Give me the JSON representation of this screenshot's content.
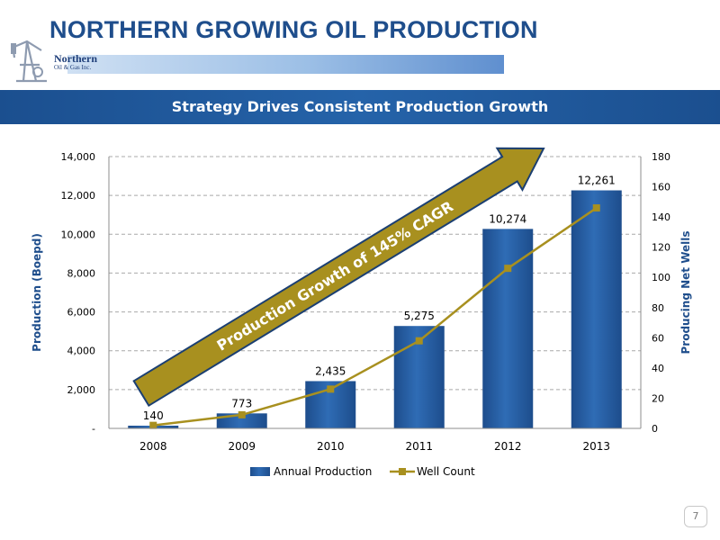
{
  "page": {
    "title": "NORTHERN GROWING OIL PRODUCTION",
    "subtitle": "Strategy Drives Consistent Production Growth",
    "page_number": "7"
  },
  "logo": {
    "line1": "Northern",
    "line2": "Oil & Gas Inc."
  },
  "colors": {
    "title": "#1f4e8c",
    "banner": "#1b4f8f",
    "bar": "#2563a9",
    "line": "#a8901f",
    "arrow": "#a8901f"
  },
  "chart_data": {
    "type": "bar",
    "categories": [
      "2008",
      "2009",
      "2010",
      "2011",
      "2012",
      "2013"
    ],
    "series": [
      {
        "name": "Annual Production",
        "type": "bar",
        "axis": "left",
        "values": [
          140,
          773,
          2435,
          5275,
          10274,
          12261
        ],
        "labels": [
          "140",
          "773",
          "2,435",
          "5,275",
          "10,274",
          "12,261"
        ]
      },
      {
        "name": "Well Count",
        "type": "line",
        "axis": "right",
        "values": [
          2,
          9,
          26,
          58,
          106,
          146
        ]
      }
    ],
    "ylabel": "Production (Boepd)",
    "y2label": "Producing Net Wells",
    "ylim": [
      0,
      14000
    ],
    "y2lim": [
      0,
      180
    ],
    "yticks": [
      "-",
      "2,000",
      "4,000",
      "6,000",
      "8,000",
      "10,000",
      "12,000",
      "14,000"
    ],
    "y2ticks": [
      "0",
      "20",
      "40",
      "60",
      "80",
      "100",
      "120",
      "140",
      "160",
      "180"
    ],
    "grid": true,
    "legend": "bottom",
    "annotation": "Production Growth of 145% CAGR"
  }
}
